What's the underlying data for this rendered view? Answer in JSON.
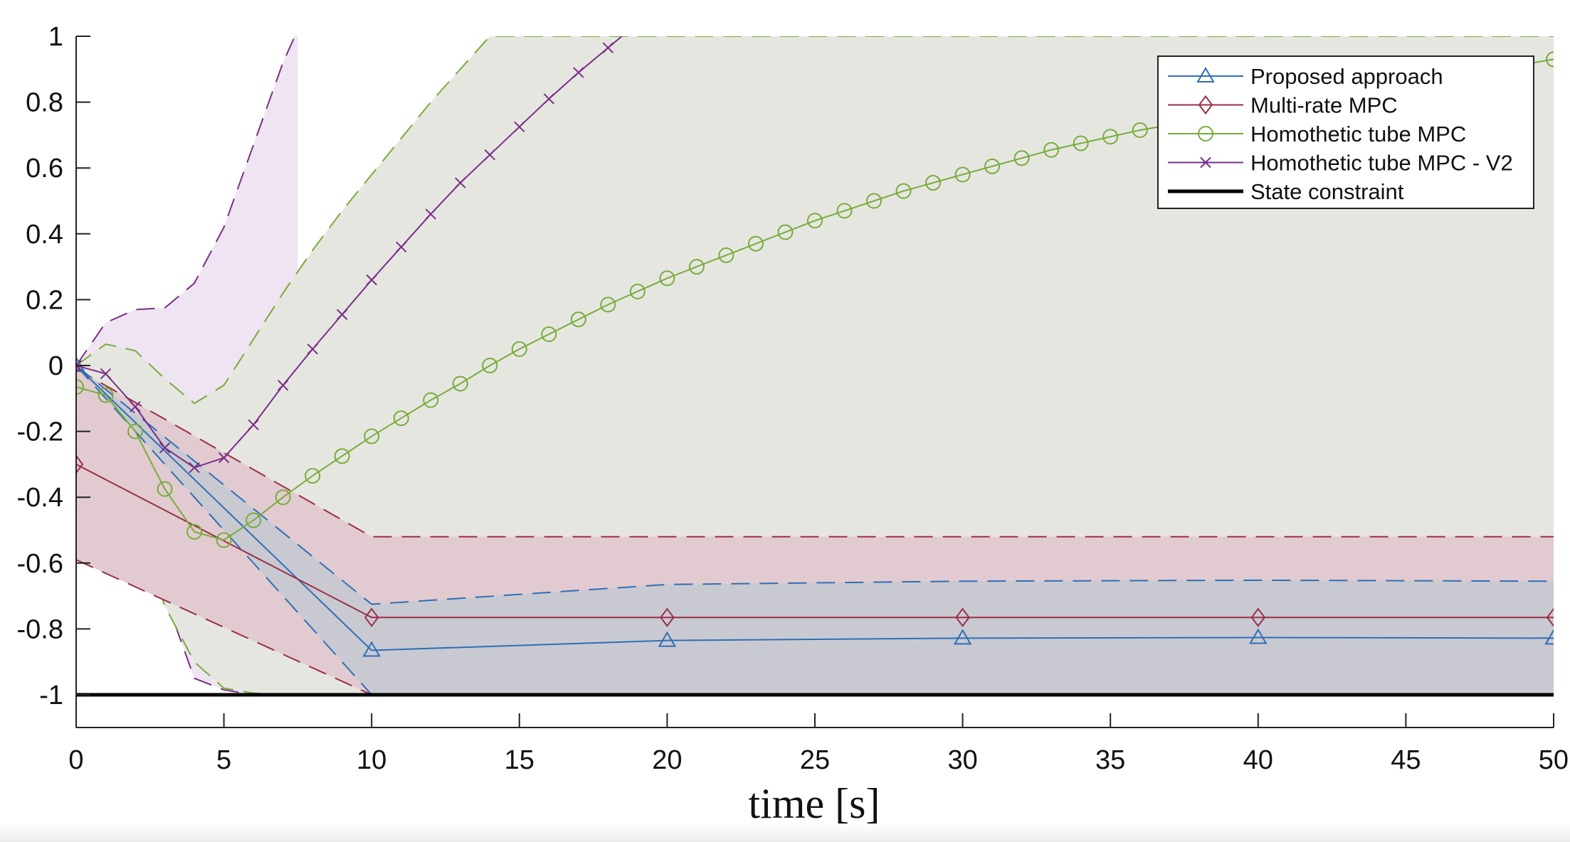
{
  "chart_data": {
    "type": "line",
    "title": "",
    "xlabel": "time [s]",
    "ylabel": "",
    "xlim": [
      0,
      50
    ],
    "ylim": [
      -1.1,
      1
    ],
    "xticks": [
      0,
      5,
      10,
      15,
      20,
      25,
      30,
      35,
      40,
      45,
      50
    ],
    "yticks": [
      1,
      0.8,
      0.6,
      0.4,
      0.2,
      0,
      -0.2,
      -0.4,
      -0.6,
      -0.8,
      -1
    ],
    "ytick_labels": [
      "1",
      "0.8",
      "0.6",
      "0.4",
      "0.2",
      "0",
      "-0.2",
      "-0.4",
      "-0.6",
      "-0.8",
      "-1"
    ],
    "legend_position": "top-right",
    "grid": false,
    "series": [
      {
        "name": "Proposed approach",
        "color": "#2f6eb5",
        "marker": "triangle",
        "x": [
          0,
          10,
          20,
          30,
          40,
          50
        ],
        "y": [
          0,
          -0.865,
          -0.835,
          -0.828,
          -0.826,
          -0.828
        ]
      },
      {
        "name": "Multi-rate MPC",
        "color": "#9b2e46",
        "marker": "diamond",
        "x": [
          0,
          10,
          20,
          30,
          40,
          50
        ],
        "y": [
          -0.3,
          -0.765,
          -0.765,
          -0.765,
          -0.765,
          -0.765
        ]
      },
      {
        "name": "Homothetic tube MPC",
        "color": "#77ac3a",
        "marker": "circle",
        "x": [
          0,
          1,
          2,
          3,
          4,
          5,
          6,
          7,
          8,
          9,
          10,
          11,
          12,
          13,
          14,
          15,
          16,
          17,
          18,
          19,
          20,
          21,
          22,
          23,
          24,
          25,
          26,
          27,
          28,
          29,
          30,
          31,
          32,
          33,
          34,
          35,
          36,
          50
        ],
        "y": [
          -0.065,
          -0.09,
          -0.2,
          -0.375,
          -0.505,
          -0.53,
          -0.47,
          -0.4,
          -0.335,
          -0.275,
          -0.215,
          -0.16,
          -0.105,
          -0.055,
          0,
          0.05,
          0.095,
          0.14,
          0.185,
          0.225,
          0.265,
          0.3,
          0.335,
          0.37,
          0.405,
          0.44,
          0.47,
          0.5,
          0.53,
          0.555,
          0.58,
          0.605,
          0.63,
          0.655,
          0.675,
          0.695,
          0.715,
          0.93
        ]
      },
      {
        "name": "Homothetic tube MPC - V2",
        "color": "#7a2e87",
        "marker": "x",
        "x": [
          0,
          1,
          2,
          3,
          4,
          5,
          6,
          7,
          8,
          9,
          10,
          11,
          12,
          13,
          14,
          15,
          16,
          17,
          18,
          19
        ],
        "y": [
          0,
          -0.025,
          -0.125,
          -0.25,
          -0.31,
          -0.28,
          -0.18,
          -0.06,
          0.05,
          0.155,
          0.26,
          0.36,
          0.46,
          0.555,
          0.64,
          0.725,
          0.81,
          0.89,
          0.965,
          1.04
        ]
      },
      {
        "name": "State constraint",
        "color": "#000000",
        "marker": "none",
        "x": [
          0,
          50
        ],
        "y": [
          -1,
          -1
        ]
      }
    ],
    "tubes": [
      {
        "name": "Homothetic tube MPC - V2",
        "fill": "#efe4f1",
        "edge": "#7a2e87",
        "x": [
          0,
          1,
          2,
          3,
          4,
          5,
          6,
          7,
          7.5
        ],
        "upper": [
          0,
          0.13,
          0.17,
          0.175,
          0.25,
          0.42,
          0.67,
          0.92,
          1.02
        ],
        "lower": [
          0,
          -0.07,
          -0.28,
          -0.7,
          -0.95,
          -0.985,
          -1,
          -1,
          -1
        ]
      },
      {
        "name": "Homothetic tube MPC",
        "fill": "#e6e6e1",
        "edge": "#77ac3a",
        "x": [
          0,
          1,
          2,
          3,
          4,
          5,
          6,
          7,
          8,
          9,
          10,
          11,
          12,
          13,
          14,
          50
        ],
        "upper": [
          0,
          0.065,
          0.045,
          -0.04,
          -0.115,
          -0.06,
          0.08,
          0.22,
          0.35,
          0.47,
          0.58,
          0.69,
          0.8,
          0.9,
          1.0,
          1.0
        ],
        "lower": [
          -0.13,
          -0.235,
          -0.48,
          -0.73,
          -0.9,
          -0.98,
          -0.995,
          -1,
          -1,
          -1,
          -1,
          -1,
          -1,
          -1,
          -1,
          -1
        ]
      },
      {
        "name": "Multi-rate MPC",
        "fill": "#e2cbd0",
        "edge": "#9b2e46",
        "x": [
          0,
          10,
          20,
          30,
          40,
          50
        ],
        "upper": [
          -0.01,
          -0.52,
          -0.52,
          -0.52,
          -0.52,
          -0.52
        ],
        "lower": [
          -0.59,
          -1,
          -1,
          -1,
          -1,
          -1
        ]
      },
      {
        "name": "Proposed approach",
        "fill": "#c9c9d2",
        "edge": "#2f6eb5",
        "x": [
          0,
          10,
          20,
          30,
          40,
          50
        ],
        "upper": [
          0,
          -0.725,
          -0.665,
          -0.655,
          -0.652,
          -0.655
        ],
        "lower": [
          0,
          -1,
          -1,
          -1,
          -1,
          -1
        ]
      }
    ]
  }
}
